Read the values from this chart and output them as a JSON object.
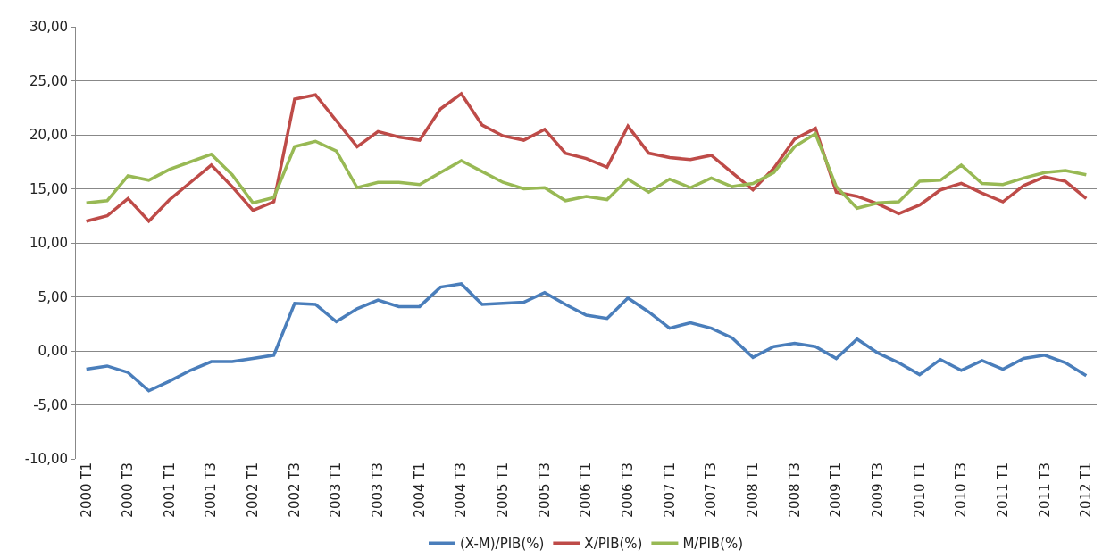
{
  "chart_data": {
    "type": "line",
    "categories": [
      "2000 T1",
      null,
      "2000 T3",
      null,
      "2001 T1",
      null,
      "2001 T3",
      null,
      "2002 T1",
      null,
      "2002 T3",
      null,
      "2003 T1",
      null,
      "2003 T3",
      null,
      "2004 T1",
      null,
      "2004 T3",
      null,
      "2005 T1",
      null,
      "2005 T3",
      null,
      "2006 T1",
      null,
      "2006 T3",
      null,
      "2007 T1",
      null,
      "2007 T3",
      null,
      "2008 T1",
      null,
      "2008 T3",
      null,
      "2009 T1",
      null,
      "2009 T3",
      null,
      "2010 T1",
      null,
      "2010 T3",
      null,
      "2011 T1",
      null,
      "2011 T3",
      null,
      "2012 T1"
    ],
    "series": [
      {
        "name": "(X-M)/PIB(%)",
        "color": "#4a7ebb",
        "values": [
          -1.7,
          -1.4,
          -2.0,
          -3.7,
          -2.8,
          -1.8,
          -1.0,
          -1.0,
          -0.7,
          -0.4,
          4.4,
          4.3,
          2.7,
          3.9,
          4.7,
          4.1,
          4.1,
          5.9,
          6.2,
          4.3,
          4.4,
          4.5,
          5.4,
          4.3,
          3.3,
          3.0,
          4.9,
          3.6,
          2.1,
          2.6,
          2.1,
          1.2,
          -0.6,
          0.4,
          0.7,
          0.4,
          -0.7,
          1.1,
          -0.2,
          -1.1,
          -2.2,
          -0.8,
          -1.8,
          -0.9,
          -1.7,
          -0.7,
          -0.4,
          -1.1,
          -2.3
        ]
      },
      {
        "name": "X/PIB(%)",
        "color": "#be4b48",
        "values": [
          12.0,
          12.5,
          14.1,
          12.0,
          14.0,
          15.6,
          17.2,
          15.2,
          13.0,
          13.8,
          23.3,
          23.7,
          21.3,
          18.9,
          20.3,
          19.8,
          19.5,
          22.4,
          23.8,
          20.9,
          19.9,
          19.5,
          20.5,
          18.3,
          17.8,
          17.0,
          20.8,
          18.3,
          17.9,
          17.7,
          18.1,
          16.5,
          14.9,
          16.9,
          19.6,
          20.6,
          14.7,
          14.3,
          13.6,
          12.7,
          13.5,
          14.9,
          15.5,
          14.6,
          13.8,
          15.3,
          16.1,
          15.7,
          14.1
        ]
      },
      {
        "name": "M/PIB(%)",
        "color": "#98b954",
        "values": [
          13.7,
          13.9,
          16.2,
          15.8,
          16.8,
          17.5,
          18.2,
          16.3,
          13.7,
          14.2,
          18.9,
          19.4,
          18.5,
          15.1,
          15.6,
          15.6,
          15.4,
          16.5,
          17.6,
          16.6,
          15.6,
          15.0,
          15.1,
          13.9,
          14.3,
          14.0,
          15.9,
          14.7,
          15.9,
          15.1,
          16.0,
          15.2,
          15.5,
          16.5,
          18.9,
          20.1,
          15.2,
          13.2,
          13.7,
          13.8,
          15.7,
          15.8,
          17.2,
          15.5,
          15.4,
          16.0,
          16.5,
          16.7,
          16.3
        ]
      }
    ],
    "ylim": [
      -10,
      30
    ],
    "yticks": [
      {
        "value": -10,
        "label": "-10,00"
      },
      {
        "value": -5,
        "label": "-5,00"
      },
      {
        "value": 0,
        "label": "0,00"
      },
      {
        "value": 5,
        "label": "5,00"
      },
      {
        "value": 10,
        "label": "10,00"
      },
      {
        "value": 15,
        "label": "15,00"
      },
      {
        "value": 20,
        "label": "20,00"
      },
      {
        "value": 25,
        "label": "25,00"
      },
      {
        "value": 30,
        "label": "30,00"
      }
    ],
    "grid": "y",
    "legend": "bottom",
    "marker": "none",
    "line_style": "solid"
  }
}
